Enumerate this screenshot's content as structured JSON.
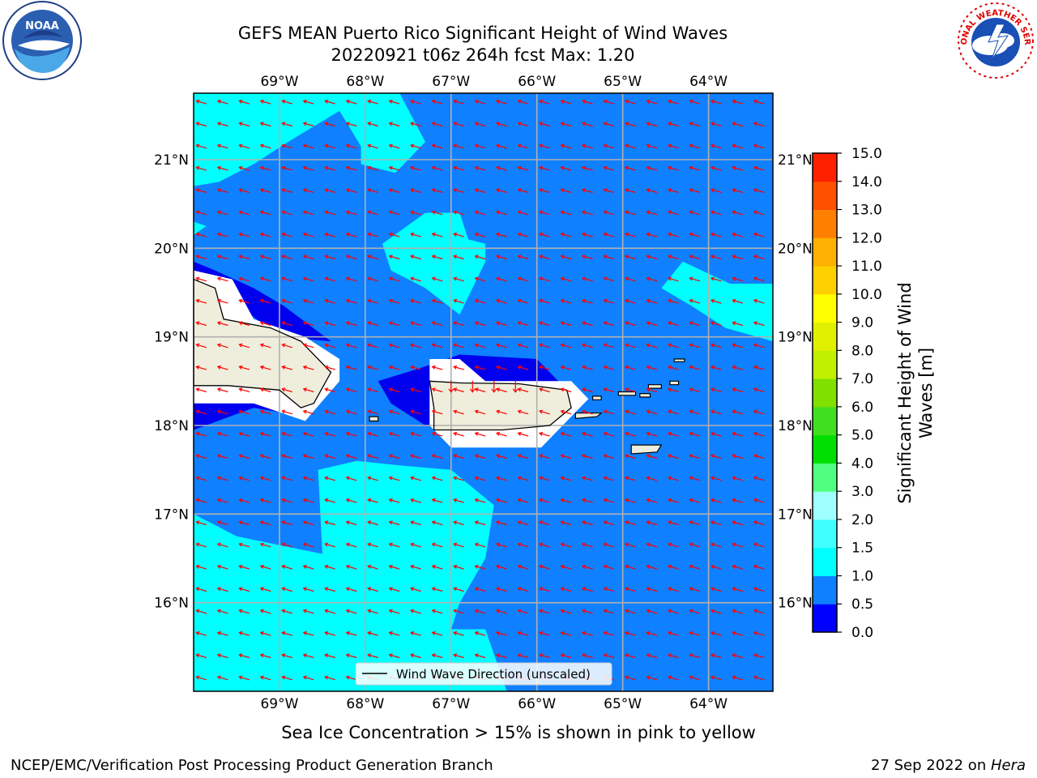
{
  "title": {
    "line1": "GEFS MEAN Puerto Rico Significant Height of Wind Waves",
    "line2": "20220921 t06z 264h fcst   Max: 1.20"
  },
  "logos": {
    "left": {
      "icon": "noaa-logo-icon",
      "text": "NOAA"
    },
    "right": {
      "icon": "nws-logo-icon",
      "text": "NATIONAL WEATHER SERVICE"
    }
  },
  "map": {
    "lon_range": [
      -70.0,
      -63.25
    ],
    "lat_range": [
      15.0,
      21.75
    ],
    "lon_ticks": [
      {
        "value": -69,
        "label": "69°W"
      },
      {
        "value": -68,
        "label": "68°W"
      },
      {
        "value": -67,
        "label": "67°W"
      },
      {
        "value": -66,
        "label": "66°W"
      },
      {
        "value": -65,
        "label": "65°W"
      },
      {
        "value": -64,
        "label": "64°W"
      }
    ],
    "lat_ticks": [
      {
        "value": 16,
        "label": "16°N"
      },
      {
        "value": 17,
        "label": "17°N"
      },
      {
        "value": 18,
        "label": "18°N"
      },
      {
        "value": 19,
        "label": "19°N"
      },
      {
        "value": 20,
        "label": "20°N"
      },
      {
        "value": 21,
        "label": "21°N"
      }
    ],
    "grid": true,
    "background_color": "#0f80ff",
    "land_color": "#efeedd",
    "arrow_color": "#ff0000",
    "wind_direction": "from east, slightly north-east",
    "legend": {
      "label": "Wind Wave Direction (unscaled)",
      "placement": "lower-center"
    },
    "regions": [
      {
        "name": "cyan-north-west",
        "color": "#00ffff",
        "points": [
          [
            -70,
            21.75
          ],
          [
            -67.6,
            21.75
          ],
          [
            -67.3,
            21.2
          ],
          [
            -67.65,
            20.85
          ],
          [
            -68.05,
            20.95
          ],
          [
            -68.05,
            21.15
          ],
          [
            -68.3,
            21.55
          ],
          [
            -68.9,
            21.2
          ],
          [
            -69.3,
            20.95
          ],
          [
            -69.7,
            20.75
          ],
          [
            -70,
            20.7
          ]
        ]
      },
      {
        "name": "cyan-small-west",
        "color": "#00ffff",
        "points": [
          [
            -70,
            20.3
          ],
          [
            -69.85,
            20.25
          ],
          [
            -70,
            20.15
          ]
        ]
      },
      {
        "name": "cyan-center-north",
        "color": "#00ffff",
        "points": [
          [
            -67.3,
            20.4
          ],
          [
            -66.9,
            20.4
          ],
          [
            -66.8,
            20.1
          ],
          [
            -66.6,
            20.05
          ],
          [
            -66.6,
            19.85
          ],
          [
            -66.9,
            19.25
          ],
          [
            -67.3,
            19.55
          ],
          [
            -67.7,
            19.75
          ],
          [
            -67.8,
            20.05
          ]
        ]
      },
      {
        "name": "cyan-north-east",
        "color": "#00ffff",
        "points": [
          [
            -64.3,
            19.85
          ],
          [
            -63.75,
            19.6
          ],
          [
            -63.25,
            19.6
          ],
          [
            -63.25,
            18.95
          ],
          [
            -63.8,
            19.1
          ],
          [
            -64.2,
            19.35
          ],
          [
            -64.55,
            19.55
          ]
        ]
      },
      {
        "name": "cyan-south-west",
        "color": "#00ffff",
        "points": [
          [
            -70,
            17.0
          ],
          [
            -69.5,
            16.75
          ],
          [
            -68.5,
            16.55
          ],
          [
            -68.55,
            17.5
          ],
          [
            -68.1,
            17.6
          ],
          [
            -67.6,
            17.55
          ],
          [
            -67.0,
            17.5
          ],
          [
            -66.5,
            17.1
          ],
          [
            -66.6,
            16.5
          ],
          [
            -66.9,
            16.0
          ],
          [
            -67.0,
            15.7
          ],
          [
            -66.6,
            15.7
          ],
          [
            -66.35,
            15.0
          ],
          [
            -70,
            15.0
          ]
        ]
      },
      {
        "name": "dark-blue-hispaniola-north",
        "color": "#0000ee",
        "points": [
          [
            -70,
            19.85
          ],
          [
            -69.75,
            19.75
          ],
          [
            -69.3,
            19.55
          ],
          [
            -68.95,
            19.35
          ],
          [
            -68.4,
            18.95
          ],
          [
            -69.0,
            19.0
          ],
          [
            -70,
            19.75
          ]
        ]
      },
      {
        "name": "dark-blue-hispaniola-south",
        "color": "#0000ee",
        "points": [
          [
            -70,
            18.3
          ],
          [
            -69.3,
            18.25
          ],
          [
            -68.7,
            18.1
          ],
          [
            -69.3,
            18.2
          ],
          [
            -70,
            17.95
          ]
        ]
      },
      {
        "name": "dark-blue-puerto-rico",
        "color": "#0000ee",
        "points": [
          [
            -67.85,
            18.5
          ],
          [
            -67.35,
            18.65
          ],
          [
            -66.9,
            18.8
          ],
          [
            -66.0,
            18.75
          ],
          [
            -65.6,
            18.35
          ],
          [
            -66.0,
            18.0
          ],
          [
            -66.9,
            18.0
          ],
          [
            -67.3,
            18.0
          ],
          [
            -67.7,
            18.25
          ]
        ]
      },
      {
        "name": "white-puerto-rico-buffer",
        "color": "#ffffff",
        "points": [
          [
            -67.25,
            18.75
          ],
          [
            -66.9,
            18.75
          ],
          [
            -66.6,
            18.5
          ],
          [
            -65.6,
            18.5
          ],
          [
            -65.4,
            18.3
          ],
          [
            -65.95,
            17.75
          ],
          [
            -67.0,
            17.75
          ],
          [
            -67.25,
            18.0
          ]
        ]
      },
      {
        "name": "white-hispaniola-buffer",
        "color": "#ffffff",
        "points": [
          [
            -70,
            19.75
          ],
          [
            -69.55,
            19.65
          ],
          [
            -69.3,
            19.2
          ],
          [
            -68.7,
            19.0
          ],
          [
            -68.3,
            18.75
          ],
          [
            -68.3,
            18.5
          ],
          [
            -68.7,
            18.05
          ],
          [
            -69.3,
            18.25
          ],
          [
            -70,
            18.25
          ]
        ]
      },
      {
        "name": "land-hispaniola",
        "color": "#efeedd",
        "points": [
          [
            -70,
            19.65
          ],
          [
            -69.75,
            19.55
          ],
          [
            -69.65,
            19.2
          ],
          [
            -69.1,
            19.1
          ],
          [
            -68.75,
            18.95
          ],
          [
            -68.4,
            18.6
          ],
          [
            -68.6,
            18.25
          ],
          [
            -68.75,
            18.2
          ],
          [
            -69.0,
            18.4
          ],
          [
            -69.6,
            18.45
          ],
          [
            -70,
            18.45
          ]
        ]
      },
      {
        "name": "land-puerto-rico",
        "color": "#efeedd",
        "points": [
          [
            -67.25,
            18.5
          ],
          [
            -66.9,
            18.48
          ],
          [
            -66.2,
            18.47
          ],
          [
            -65.65,
            18.4
          ],
          [
            -65.6,
            18.2
          ],
          [
            -65.85,
            18.0
          ],
          [
            -66.4,
            17.95
          ],
          [
            -67.2,
            17.95
          ],
          [
            -67.2,
            18.2
          ]
        ]
      }
    ],
    "islands": [
      {
        "name": "mona-island",
        "points": [
          [
            -67.95,
            18.1
          ],
          [
            -67.85,
            18.1
          ],
          [
            -67.85,
            18.05
          ],
          [
            -67.95,
            18.05
          ]
        ]
      },
      {
        "name": "vieques",
        "points": [
          [
            -65.55,
            18.14
          ],
          [
            -65.25,
            18.14
          ],
          [
            -65.3,
            18.1
          ],
          [
            -65.55,
            18.08
          ]
        ]
      },
      {
        "name": "st-croix",
        "points": [
          [
            -64.9,
            17.78
          ],
          [
            -64.55,
            17.78
          ],
          [
            -64.6,
            17.7
          ],
          [
            -64.9,
            17.68
          ]
        ]
      },
      {
        "name": "st-thomas",
        "points": [
          [
            -65.05,
            18.38
          ],
          [
            -64.85,
            18.38
          ],
          [
            -64.85,
            18.34
          ],
          [
            -65.05,
            18.34
          ]
        ]
      },
      {
        "name": "st-john",
        "points": [
          [
            -64.8,
            18.36
          ],
          [
            -64.68,
            18.36
          ],
          [
            -64.68,
            18.32
          ],
          [
            -64.8,
            18.32
          ]
        ]
      },
      {
        "name": "tortola",
        "points": [
          [
            -64.7,
            18.46
          ],
          [
            -64.55,
            18.46
          ],
          [
            -64.55,
            18.42
          ],
          [
            -64.7,
            18.42
          ]
        ]
      },
      {
        "name": "virgin-gorda",
        "points": [
          [
            -64.45,
            18.5
          ],
          [
            -64.35,
            18.5
          ],
          [
            -64.35,
            18.46
          ],
          [
            -64.45,
            18.46
          ]
        ]
      },
      {
        "name": "anegada",
        "points": [
          [
            -64.4,
            18.75
          ],
          [
            -64.28,
            18.75
          ],
          [
            -64.28,
            18.72
          ],
          [
            -64.4,
            18.72
          ]
        ]
      },
      {
        "name": "culebra",
        "points": [
          [
            -65.35,
            18.33
          ],
          [
            -65.25,
            18.33
          ],
          [
            -65.25,
            18.29
          ],
          [
            -65.35,
            18.29
          ]
        ]
      }
    ]
  },
  "colorbar": {
    "label": "Significant Height of Wind Waves [m]",
    "label_line1": "Significant Height of Wind",
    "label_line2": "Waves [m]",
    "ticks": [
      "0.0",
      "0.5",
      "1.0",
      "1.5",
      "2.0",
      "3.0",
      "4.0",
      "5.0",
      "6.0",
      "7.0",
      "8.0",
      "9.0",
      "10.0",
      "11.0",
      "12.0",
      "13.0",
      "14.0",
      "15.0"
    ],
    "colors": [
      "#0000ff",
      "#0f80ff",
      "#00ffff",
      "#40ffff",
      "#a0ffff",
      "#50ff80",
      "#00e000",
      "#40e020",
      "#80e000",
      "#c0f000",
      "#e0f000",
      "#ffff00",
      "#ffd000",
      "#ffb000",
      "#ff8000",
      "#ff5000",
      "#ff2000"
    ]
  },
  "note": "Sea Ice Concentration > 15% is shown in pink to yellow",
  "footer": {
    "left": "NCEP/EMC/Verification Post Processing Product Generation Branch",
    "right_prefix": "27 Sep 2022 on ",
    "right_host": "Hera"
  }
}
